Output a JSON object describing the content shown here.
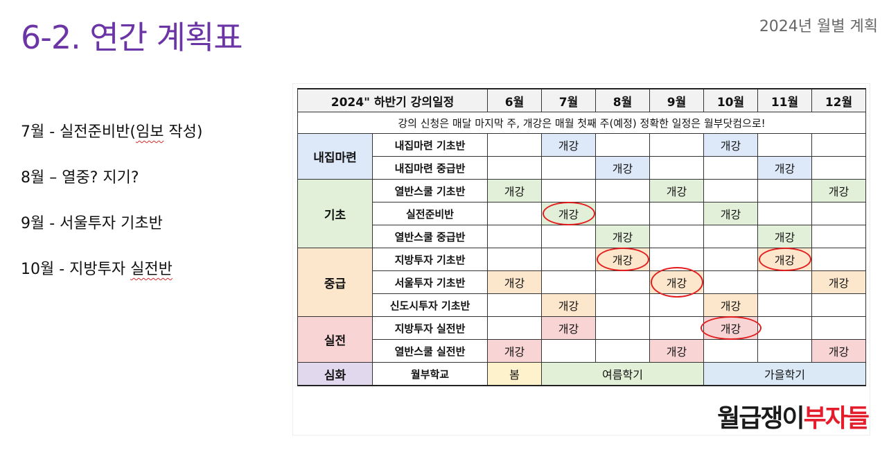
{
  "title": "6-2. 연간 계획표",
  "subtitle": "2024년 월별 계획",
  "notes": [
    {
      "text": "7월 - 실전준비반(",
      "squig": "임보",
      "tail": " 작성)"
    },
    {
      "text": "8월 – 열중? 지기?",
      "squig": "",
      "tail": ""
    },
    {
      "text": "9월 - 서울투자 기초반",
      "squig": "",
      "tail": ""
    },
    {
      "text": "10월 - 지방투자 ",
      "squig": "실전반",
      "tail": ""
    }
  ],
  "table": {
    "header": [
      "2024\" 하반기 강의일정",
      "6월",
      "7월",
      "8월",
      "9월",
      "10월",
      "11월",
      "12월"
    ],
    "notice": "강의 신청은 매달 마지막 주, 개강은 매월 첫째 주(예정) 정확한 일정은 월부닷컴으로!",
    "open_label": "개강",
    "categories": [
      "내집마련",
      "기초",
      "중급",
      "실전",
      "심화"
    ],
    "courses": [
      "내집마련 기초반",
      "내집마련 중급반",
      "열반스쿨 기초반",
      "실전준비반",
      "열반스쿨 중급반",
      "지방투자 기초반",
      "서울투자 기초반",
      "신도시투자 기초반",
      "지방투자 실전반",
      "열반스쿨 실전반",
      "월부학교"
    ],
    "school_terms": [
      "봄",
      "여름학기",
      "가을학기"
    ]
  },
  "logo": {
    "part1": "월급쟁이",
    "part2": "부자들"
  },
  "colors": {
    "title": "#6b35a5",
    "circle": "#e31d1d",
    "logo_red": "#e31d2b"
  }
}
